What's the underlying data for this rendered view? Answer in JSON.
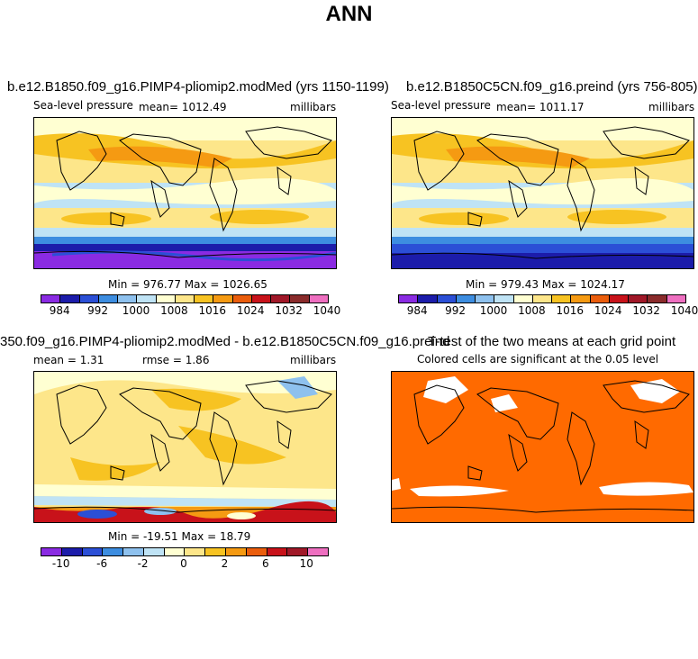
{
  "figure_title": "ANN",
  "panels": {
    "top_left": {
      "title": "b.e12.B1850.f09_g16.PIMP4-pliomip2.modMed (yrs 1150-1199)",
      "variable": "Sea-level pressure",
      "mean_text": "mean= 1012.49",
      "units": "millibars",
      "minmax": "Min = 976.77  Max = 1026.65"
    },
    "top_right": {
      "title": "b.e12.B1850C5CN.f09_g16.preind (yrs 756-805)",
      "variable": "Sea-level pressure",
      "mean_text": "mean= 1011.17",
      "units": "millibars",
      "minmax": "Min = 979.43  Max = 1024.17"
    },
    "bottom_left": {
      "title": "350.f09_g16.PIMP4-pliomip2.modMed - b.e12.B1850C5CN.f09_g16.preind",
      "mean_text": "mean =     1.31",
      "rmse_text": "rmse =     1.86",
      "units": "millibars",
      "minmax": "Min = -19.51  Max =   18.79"
    },
    "bottom_right": {
      "title": "T-test of the two means at each grid point",
      "subtitle": "Colored cells are significant at the 0.05 level"
    }
  },
  "colorbars": {
    "abs": {
      "colors": [
        "#8a2be2",
        "#1c1caa",
        "#2b4fd6",
        "#3d8de0",
        "#8ec1ee",
        "#bfe3f5",
        "#ffffd2",
        "#fde68a",
        "#f7c322",
        "#f59a12",
        "#ea5d0c",
        "#c8121a",
        "#a01828",
        "#8a2b2b",
        "#ee6fc0"
      ],
      "labels": [
        "984",
        "992",
        "1000",
        "1008",
        "1016",
        "1024",
        "1032",
        "1040"
      ]
    },
    "diff": {
      "colors": [
        "#8a2be2",
        "#1c1caa",
        "#2b4fd6",
        "#3d8de0",
        "#8ec1ee",
        "#bfe3f5",
        "#ffffd2",
        "#fde68a",
        "#f7c322",
        "#f59a12",
        "#ea5d0c",
        "#c8121a",
        "#a01828",
        "#ee6fc0"
      ],
      "labels": [
        "-10",
        "-6",
        "-2",
        "0",
        "2",
        "6",
        "10"
      ]
    }
  },
  "ttest_color": "#ff6a00"
}
